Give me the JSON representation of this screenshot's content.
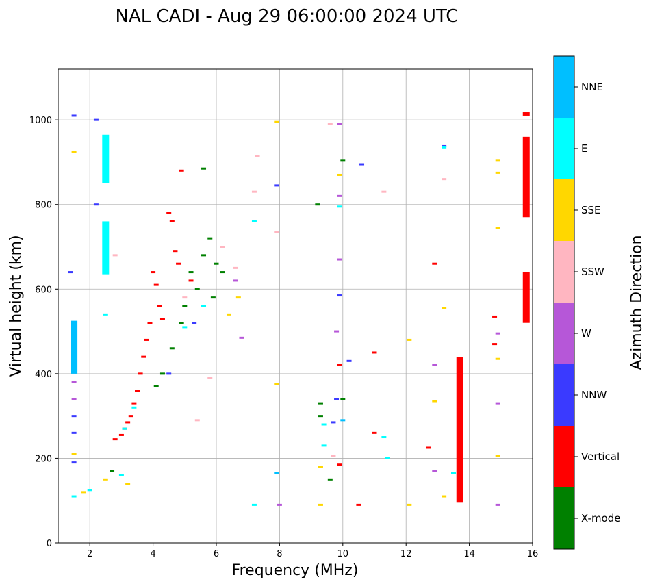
{
  "chart_data": {
    "type": "scatter",
    "title": "NAL CADI - Aug 29 06:00:00 2024 UTC",
    "xlabel": "Frequency (MHz)",
    "ylabel": "Virtual height (km)",
    "xlim": [
      1,
      16
    ],
    "ylim": [
      0,
      1120
    ],
    "xticks": [
      2,
      4,
      6,
      8,
      10,
      12,
      14,
      16
    ],
    "yticks": [
      0,
      200,
      400,
      600,
      800,
      1000
    ],
    "grid": true,
    "colorbar": {
      "label": "Azimuth Direction",
      "categories": [
        {
          "name": "X-mode",
          "color": "#008000"
        },
        {
          "name": "Vertical",
          "color": "#ff0000"
        },
        {
          "name": "NNW",
          "color": "#3a3aff"
        },
        {
          "name": "W",
          "color": "#b657d8"
        },
        {
          "name": "SSW",
          "color": "#ffb6c1"
        },
        {
          "name": "SSE",
          "color": "#ffd700"
        },
        {
          "name": "E",
          "color": "#00ffff"
        },
        {
          "name": "NNE",
          "color": "#00bfff"
        }
      ]
    },
    "series": [
      {
        "name": "Vertical",
        "points": [
          [
            4.0,
            640
          ],
          [
            4.1,
            610
          ],
          [
            4.2,
            560
          ],
          [
            4.3,
            530
          ],
          [
            4.5,
            780
          ],
          [
            4.6,
            760
          ],
          [
            4.7,
            690
          ],
          [
            4.8,
            660
          ],
          [
            4.9,
            880
          ],
          [
            5.2,
            620
          ],
          [
            3.9,
            520
          ],
          [
            3.8,
            480
          ],
          [
            3.7,
            440
          ],
          [
            3.6,
            400
          ],
          [
            3.5,
            360
          ],
          [
            3.4,
            330
          ],
          [
            3.3,
            300
          ],
          [
            3.2,
            285
          ],
          [
            3.1,
            270
          ],
          [
            3.0,
            255
          ],
          [
            2.8,
            245
          ],
          [
            11.0,
            450
          ],
          [
            11.0,
            260
          ],
          [
            12.7,
            225
          ],
          [
            12.9,
            660
          ],
          [
            14.8,
            535
          ],
          [
            14.8,
            470
          ],
          [
            10.5,
            90
          ],
          [
            9.9,
            185
          ],
          [
            9.9,
            420
          ]
        ]
      },
      {
        "name": "X-mode",
        "points": [
          [
            5.0,
            560
          ],
          [
            5.2,
            640
          ],
          [
            5.4,
            600
          ],
          [
            5.6,
            680
          ],
          [
            5.8,
            720
          ],
          [
            5.9,
            580
          ],
          [
            6.0,
            660
          ],
          [
            6.2,
            640
          ],
          [
            4.9,
            520
          ],
          [
            4.6,
            460
          ],
          [
            4.3,
            400
          ],
          [
            4.1,
            370
          ],
          [
            9.3,
            330
          ],
          [
            9.3,
            300
          ],
          [
            9.6,
            150
          ],
          [
            10.0,
            340
          ],
          [
            10.0,
            905
          ],
          [
            9.2,
            800
          ],
          [
            5.6,
            885
          ],
          [
            2.7,
            170
          ]
        ]
      },
      {
        "name": "NNW",
        "points": [
          [
            1.5,
            1010
          ],
          [
            1.5,
            300
          ],
          [
            1.5,
            260
          ],
          [
            1.5,
            190
          ],
          [
            2.2,
            1000
          ],
          [
            2.2,
            800
          ],
          [
            4.5,
            400
          ],
          [
            5.3,
            520
          ],
          [
            7.9,
            845
          ],
          [
            9.9,
            585
          ],
          [
            10.6,
            895
          ],
          [
            10.2,
            430
          ],
          [
            9.8,
            340
          ],
          [
            9.7,
            285
          ],
          [
            13.2,
            938
          ],
          [
            1.4,
            640
          ]
        ]
      },
      {
        "name": "W",
        "points": [
          [
            1.5,
            380
          ],
          [
            1.5,
            340
          ],
          [
            6.6,
            620
          ],
          [
            6.8,
            485
          ],
          [
            9.8,
            500
          ],
          [
            9.9,
            990
          ],
          [
            9.9,
            820
          ],
          [
            9.9,
            670
          ],
          [
            12.9,
            420
          ],
          [
            12.9,
            170
          ],
          [
            14.9,
            495
          ],
          [
            14.9,
            330
          ],
          [
            14.9,
            90
          ],
          [
            8.0,
            90
          ]
        ]
      },
      {
        "name": "SSW",
        "points": [
          [
            2.8,
            680
          ],
          [
            5.0,
            580
          ],
          [
            6.2,
            700
          ],
          [
            6.6,
            650
          ],
          [
            7.2,
            830
          ],
          [
            7.3,
            915
          ],
          [
            7.9,
            735
          ],
          [
            9.7,
            205
          ],
          [
            9.6,
            990
          ],
          [
            11.3,
            830
          ],
          [
            13.2,
            860
          ],
          [
            5.8,
            390
          ],
          [
            5.4,
            290
          ]
        ]
      },
      {
        "name": "SSE",
        "points": [
          [
            1.5,
            925
          ],
          [
            1.5,
            210
          ],
          [
            1.8,
            120
          ],
          [
            2.5,
            150
          ],
          [
            3.2,
            140
          ],
          [
            6.7,
            580
          ],
          [
            6.4,
            540
          ],
          [
            7.9,
            995
          ],
          [
            7.9,
            375
          ],
          [
            9.9,
            870
          ],
          [
            9.3,
            180
          ],
          [
            9.3,
            90
          ],
          [
            12.1,
            480
          ],
          [
            12.9,
            335
          ],
          [
            13.2,
            555
          ],
          [
            13.2,
            110
          ],
          [
            14.9,
            905
          ],
          [
            14.9,
            875
          ],
          [
            14.9,
            745
          ],
          [
            14.9,
            435
          ],
          [
            14.9,
            205
          ],
          [
            12.1,
            90
          ]
        ]
      },
      {
        "name": "E",
        "points": [
          [
            2.5,
            950
          ],
          [
            2.5,
            900
          ],
          [
            2.5,
            740
          ],
          [
            2.5,
            700
          ],
          [
            2.5,
            540
          ],
          [
            1.5,
            110
          ],
          [
            2.0,
            125
          ],
          [
            3.0,
            160
          ],
          [
            3.1,
            270
          ],
          [
            3.4,
            320
          ],
          [
            5.0,
            510
          ],
          [
            5.6,
            560
          ],
          [
            7.2,
            760
          ],
          [
            7.2,
            90
          ],
          [
            9.4,
            280
          ],
          [
            9.4,
            230
          ],
          [
            9.9,
            795
          ],
          [
            11.3,
            250
          ],
          [
            11.4,
            200
          ],
          [
            13.5,
            165
          ],
          [
            13.2,
            935
          ]
        ]
      },
      {
        "name": "NNE",
        "points": [
          [
            1.5,
            500
          ],
          [
            1.5,
            450
          ],
          [
            1.5,
            420
          ],
          [
            7.9,
            165
          ],
          [
            10.0,
            290
          ]
        ]
      }
    ],
    "bars": [
      {
        "name": "Vertical",
        "x": 13.7,
        "y_from": 95,
        "y_to": 440
      },
      {
        "name": "Vertical",
        "x": 15.8,
        "y_from": 770,
        "y_to": 960
      },
      {
        "name": "Vertical",
        "x": 15.8,
        "y_from": 520,
        "y_to": 640
      },
      {
        "name": "Vertical",
        "x": 15.8,
        "y_from": 1010,
        "y_to": 1018
      },
      {
        "name": "E",
        "x": 2.5,
        "y_from": 635,
        "y_to": 760
      },
      {
        "name": "E",
        "x": 2.5,
        "y_from": 850,
        "y_to": 965
      },
      {
        "name": "NNE",
        "x": 1.5,
        "y_from": 400,
        "y_to": 525
      }
    ]
  }
}
